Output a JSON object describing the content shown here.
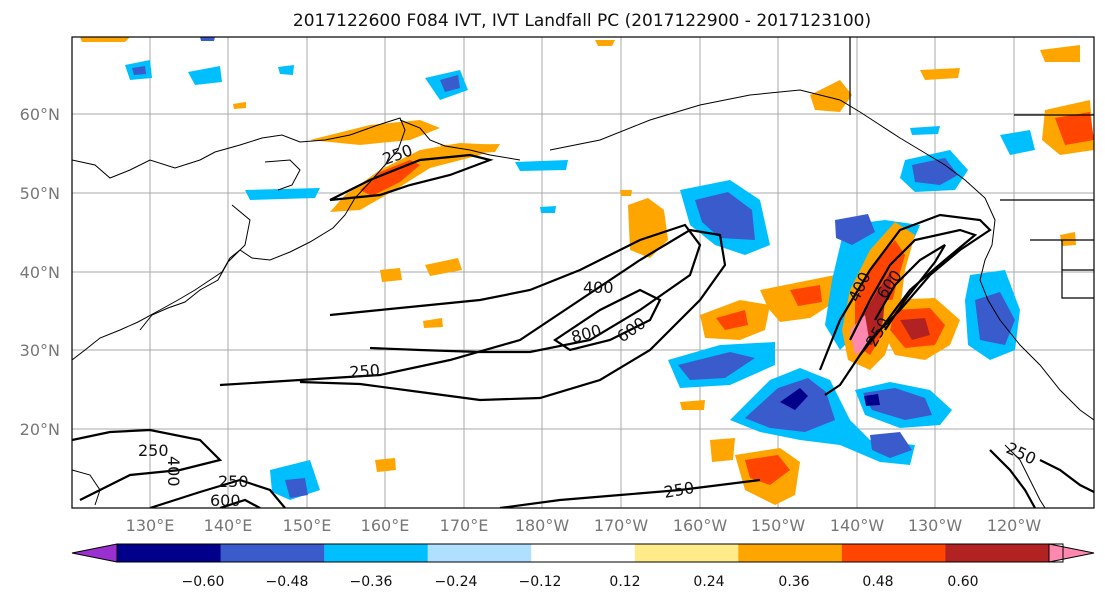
{
  "map": {
    "title": "2017122600 F084 IVT, IVT Landfall PC (2017122900 - 2017123100)",
    "lat_labels": [
      "60°N",
      "50°N",
      "40°N",
      "30°N",
      "20°N"
    ],
    "lon_labels": [
      "130°E",
      "140°E",
      "150°E",
      "160°E",
      "170°E",
      "180°W",
      "170°W",
      "160°W",
      "150°W",
      "140°W",
      "130°W",
      "120°W"
    ],
    "colorbar": {
      "tick_labels": [
        "−0.60",
        "−0.48",
        "−0.36",
        "−0.24",
        "−0.12",
        "0.12",
        "0.24",
        "0.36",
        "0.48",
        "0.60"
      ],
      "colors": [
        "#9b30d0",
        "#00008b",
        "#3a5bcc",
        "#00bfff",
        "#b0e0ff",
        "#ffffff",
        "#ffeb8a",
        "#ffa500",
        "#ff4500",
        "#b22222",
        "#ff88b0"
      ]
    },
    "contour_labels": [
      "250",
      "400",
      "800",
      "600",
      "250",
      "400",
      "600",
      "250",
      "250",
      "250",
      "400",
      "600",
      "250",
      "250"
    ],
    "palette": {
      "dark_blue": "#00008b",
      "med_blue": "#3a5bcc",
      "blue": "#00bfff",
      "light_blue": "#b0e0ff",
      "light_yellow": "#ffeb8a",
      "orange": "#ffa500",
      "red_orange": "#ff4500",
      "dark_red": "#b22222",
      "pink": "#ff88b0"
    }
  }
}
